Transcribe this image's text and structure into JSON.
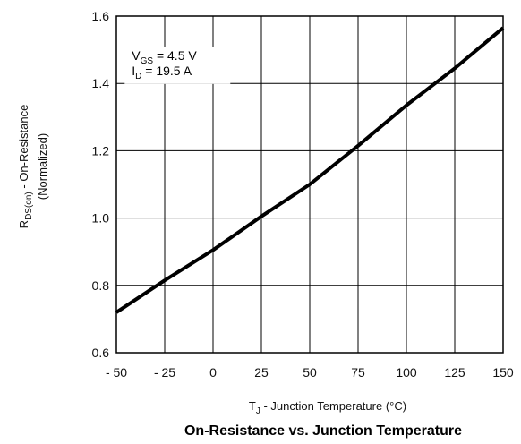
{
  "chart_data": {
    "type": "line",
    "title": "On-Resistance vs. Junction Temperature",
    "xlabel": {
      "main": "T",
      "sub": "J",
      "rest": " - Junction Temperature (°C)"
    },
    "ylabel": {
      "main": "R",
      "sub": "DS(on)",
      "rest": " - On-Resistance",
      "line2": "(Normalized)"
    },
    "xlim": [
      -50,
      150
    ],
    "ylim": [
      0.6,
      1.6
    ],
    "xticks": [
      -50,
      -25,
      0,
      25,
      50,
      75,
      100,
      125,
      150
    ],
    "xtick_labels": [
      "- 50",
      "- 25",
      "0",
      "25",
      "50",
      "75",
      "100",
      "125",
      "150"
    ],
    "yticks": [
      0.6,
      0.8,
      1.0,
      1.2,
      1.4,
      1.6
    ],
    "ytick_labels": [
      "0.6",
      "0.8",
      "1.0",
      "1.2",
      "1.4",
      "1.6"
    ],
    "grid": true,
    "annotation": {
      "line1": {
        "main": "V",
        "sub": "GS",
        "rest": " = 4.5 V"
      },
      "line2": {
        "main": "I",
        "sub": "D",
        "rest": " = 19.5 A"
      }
    },
    "series": [
      {
        "x": [
          -50,
          -25,
          0,
          25,
          50,
          75,
          100,
          125,
          150
        ],
        "y": [
          0.72,
          0.815,
          0.905,
          1.005,
          1.1,
          1.215,
          1.335,
          1.445,
          1.565
        ]
      }
    ]
  }
}
